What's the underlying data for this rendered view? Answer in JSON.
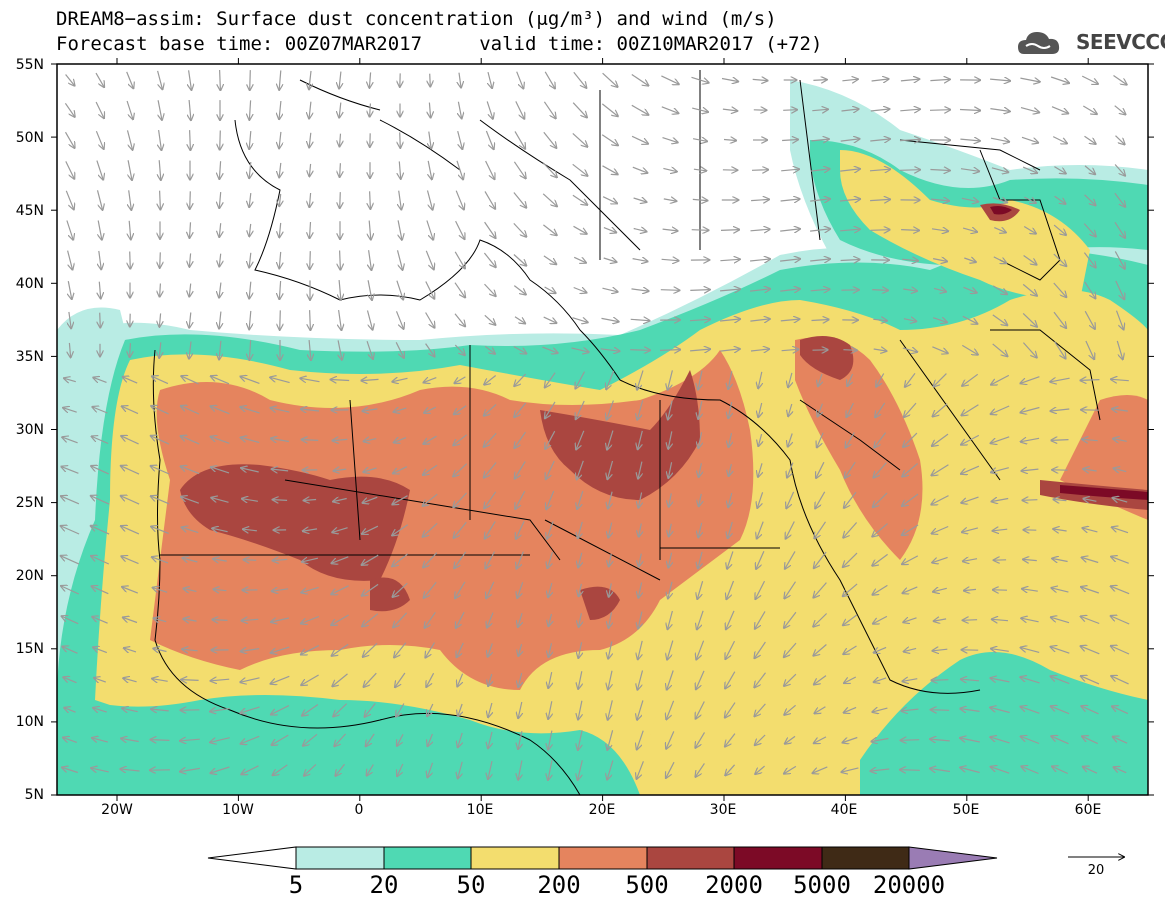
{
  "header": {
    "title_line1": "DREAM8−assim: Surface dust concentration (μg/m³) and wind (m/s)",
    "title_line2": "Forecast base time: 00Z07MAR2017     valid time: 00Z10MAR2017 (+72)"
  },
  "logo": {
    "text": "SEEVCCC",
    "icon": "cloud-icon",
    "color": "#555555"
  },
  "map": {
    "lat_labels": [
      "55N",
      "50N",
      "45N",
      "40N",
      "35N",
      "30N",
      "25N",
      "20N",
      "15N",
      "10N",
      "5N"
    ],
    "lon_labels": [
      "20W",
      "10W",
      "0",
      "10E",
      "20E",
      "30E",
      "40E",
      "50E",
      "60E"
    ],
    "lat_range": [
      5,
      55
    ],
    "lon_range": [
      -25,
      65
    ]
  },
  "colorbar": {
    "labels": [
      "5",
      "20",
      "50",
      "200",
      "500",
      "2000",
      "5000",
      "20000"
    ],
    "colors": [
      "#b9ece4",
      "#4fd9b3",
      "#f3dd6e",
      "#e5845e",
      "#aa4640",
      "#7c0a26",
      "#3f2a16",
      "#9a7cb4"
    ]
  },
  "wind_reference": {
    "label": "20"
  }
}
